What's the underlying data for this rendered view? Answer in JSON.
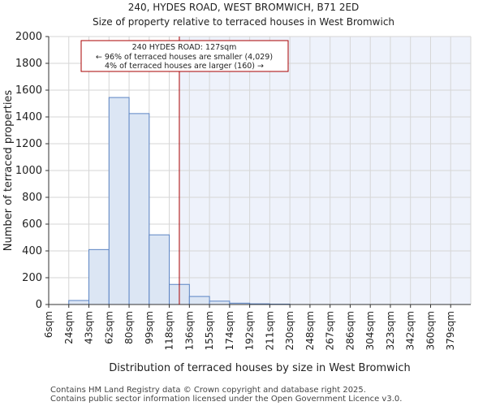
{
  "title": "240, HYDES ROAD, WEST BROMWICH, B71 2ED",
  "subtitle": "Size of property relative to terraced houses in West Bromwich",
  "footer": {
    "line1": "Contains HM Land Registry data © Crown copyright and database right 2025.",
    "line2": "Contains public sector information licensed under the Open Government Licence v3.0."
  },
  "colors": {
    "bar_fill": "#dce6f4",
    "bar_stroke": "#5b84c4",
    "marker": "#aa0000",
    "highlight": "#eef2fb"
  },
  "chart_data": {
    "type": "bar",
    "title": "240, HYDES ROAD, WEST BROMWICH, B71 2ED",
    "subtitle": "Size of property relative to terraced houses in West Bromwich",
    "xlabel": "Distribution of terraced houses by size in West Bromwich",
    "ylabel": "Number of terraced properties",
    "categories": [
      "6sqm",
      "24sqm",
      "43sqm",
      "62sqm",
      "80sqm",
      "99sqm",
      "118sqm",
      "136sqm",
      "155sqm",
      "174sqm",
      "192sqm",
      "211sqm",
      "230sqm",
      "248sqm",
      "267sqm",
      "286sqm",
      "304sqm",
      "323sqm",
      "342sqm",
      "360sqm",
      "379sqm"
    ],
    "values": [
      0,
      30,
      410,
      1545,
      1425,
      520,
      150,
      60,
      25,
      10,
      5,
      3,
      0,
      0,
      0,
      0,
      0,
      0,
      0,
      0,
      0
    ],
    "ylim": [
      0,
      2000
    ],
    "yticks": [
      0,
      200,
      400,
      600,
      800,
      1000,
      1200,
      1400,
      1600,
      1800,
      2000
    ],
    "marker_value_sqm": 127,
    "annotation": {
      "line1": "240 HYDES ROAD: 127sqm",
      "line2": "← 96% of terraced houses are smaller (4,029)",
      "line3": "4% of terraced houses are larger (160) →"
    }
  }
}
